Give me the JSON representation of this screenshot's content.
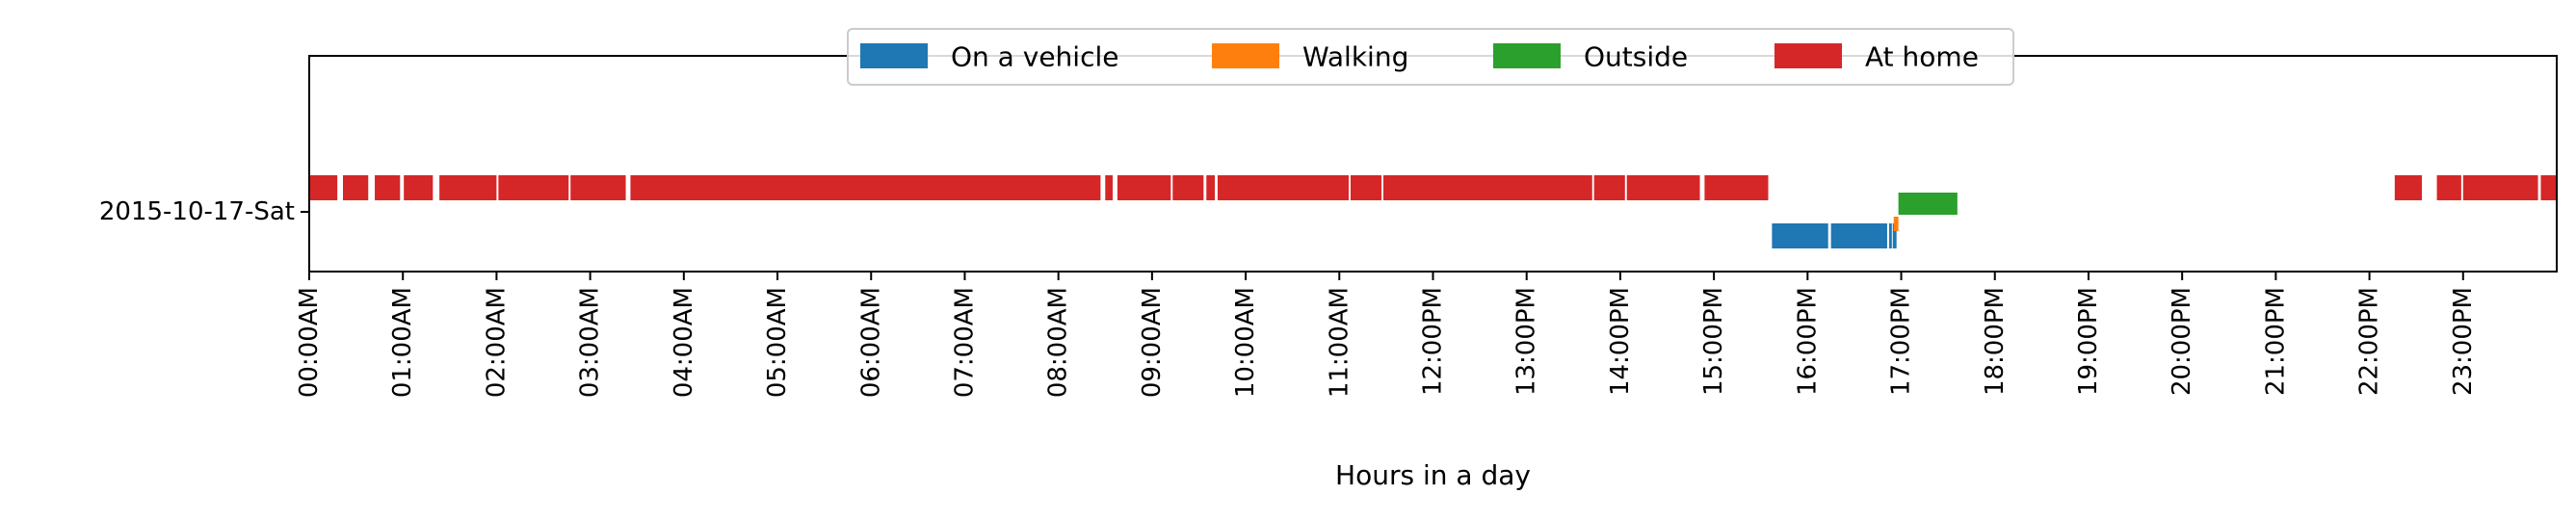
{
  "chart_data": {
    "type": "timeline",
    "xlabel": "Hours in a day",
    "xlim": [
      0,
      24
    ],
    "x_tick_labels": [
      "00:00AM",
      "01:00AM",
      "02:00AM",
      "03:00AM",
      "04:00AM",
      "05:00AM",
      "06:00AM",
      "07:00AM",
      "08:00AM",
      "09:00AM",
      "10:00AM",
      "11:00AM",
      "12:00PM",
      "13:00PM",
      "14:00PM",
      "15:00PM",
      "16:00PM",
      "17:00PM",
      "18:00PM",
      "19:00PM",
      "20:00PM",
      "21:00PM",
      "22:00PM",
      "23:00PM"
    ],
    "categories": [
      "2015-10-17-Sat"
    ],
    "legend_position": "top-center",
    "series": [
      {
        "name": "On a vehicle",
        "color": "#1f77b4",
        "intervals": [
          [
            15.62,
            16.22
          ],
          [
            16.25,
            16.85
          ],
          [
            16.87,
            16.9
          ],
          [
            16.91,
            16.95
          ]
        ]
      },
      {
        "name": "Walking",
        "color": "#ff7f0e",
        "intervals": [
          [
            16.92,
            16.97
          ]
        ]
      },
      {
        "name": "Outside",
        "color": "#2ca02c",
        "intervals": [
          [
            16.97,
            17.6
          ]
        ]
      },
      {
        "name": "At home",
        "color": "#d62728",
        "intervals": [
          [
            0.0,
            0.3
          ],
          [
            0.36,
            0.63
          ],
          [
            0.7,
            0.97
          ],
          [
            1.01,
            1.32
          ],
          [
            1.39,
            2.0
          ],
          [
            2.02,
            2.77
          ],
          [
            2.79,
            3.38
          ],
          [
            3.43,
            8.45
          ],
          [
            8.5,
            8.58
          ],
          [
            8.63,
            9.2
          ],
          [
            9.22,
            9.55
          ],
          [
            9.58,
            9.67
          ],
          [
            9.7,
            11.1
          ],
          [
            11.12,
            11.45
          ],
          [
            11.47,
            13.7
          ],
          [
            13.72,
            14.05
          ],
          [
            14.07,
            14.85
          ],
          [
            14.9,
            15.58
          ],
          [
            22.27,
            22.56
          ],
          [
            22.72,
            22.98
          ],
          [
            23.0,
            23.8
          ],
          [
            23.83,
            24.0
          ]
        ]
      }
    ]
  }
}
